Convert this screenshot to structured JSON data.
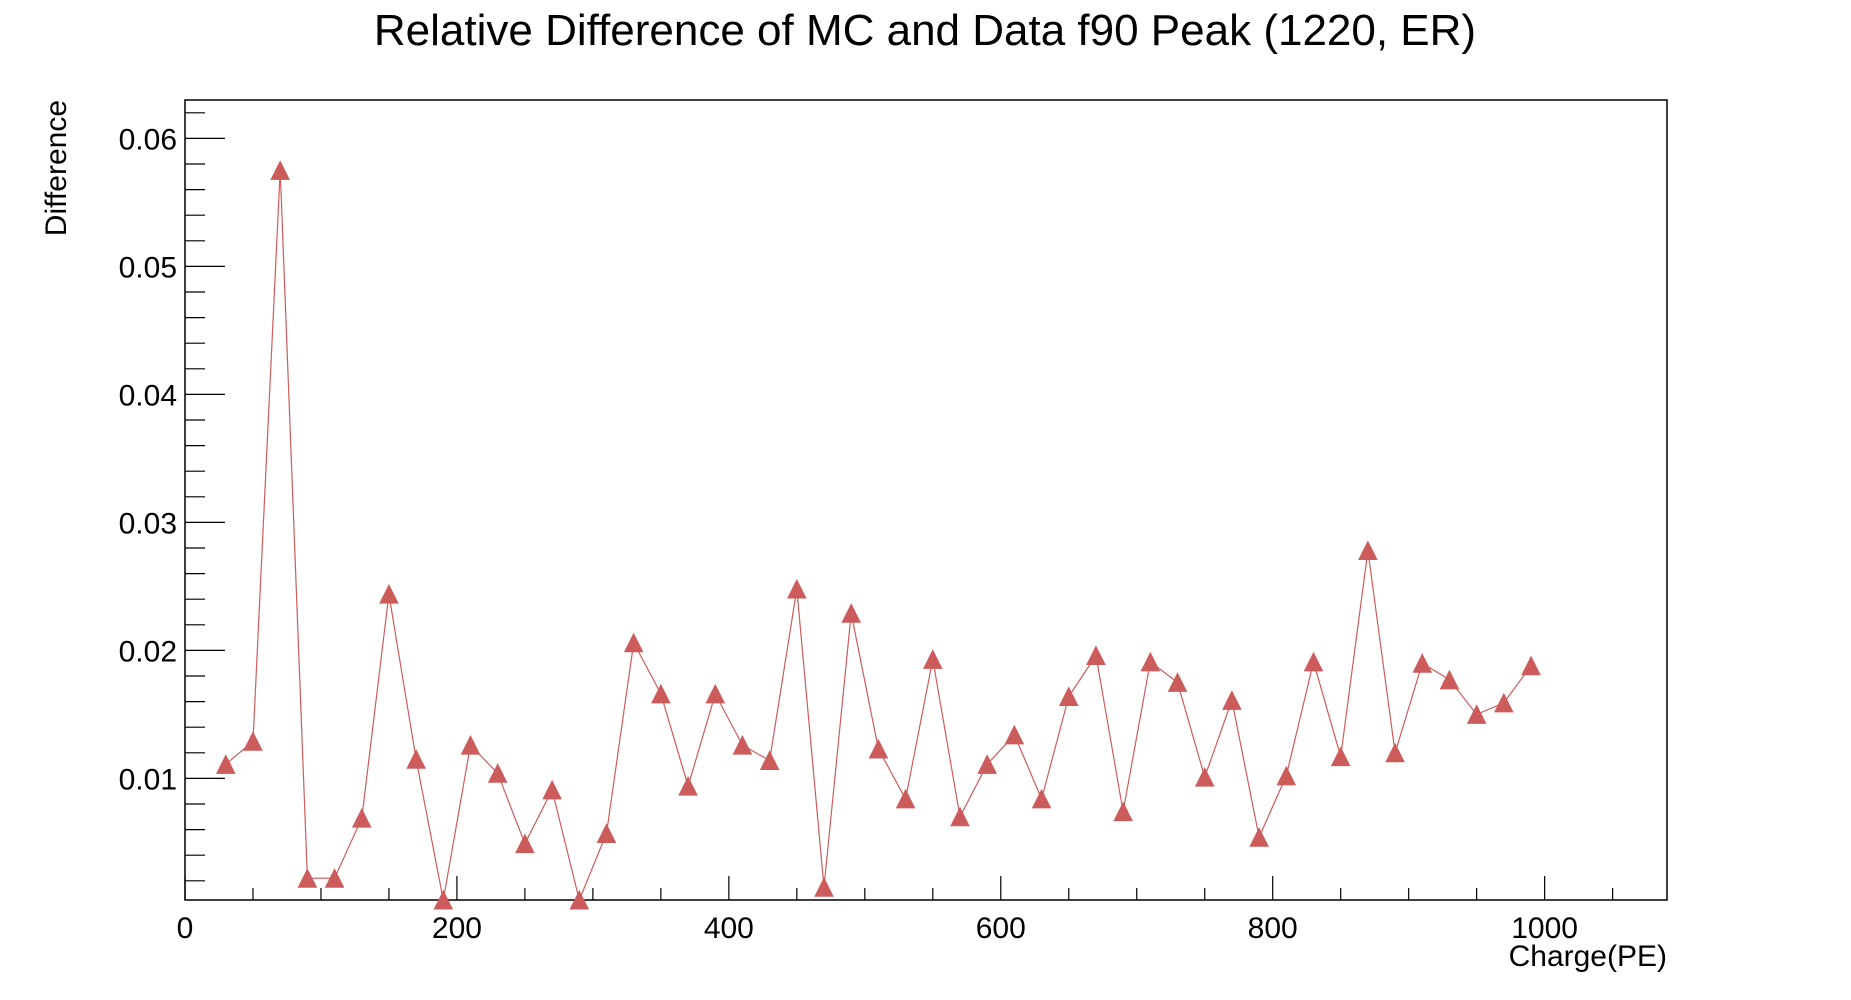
{
  "chart_data": {
    "type": "line",
    "title": "Relative Difference of MC and Data f90 Peak (1220, ER)",
    "xlabel": "Charge(PE)",
    "ylabel": "Difference",
    "xlim": [
      0,
      1090
    ],
    "ylim": [
      0.0005,
      0.063
    ],
    "x_ticks": [
      0,
      200,
      400,
      600,
      800,
      1000
    ],
    "x_tick_labels": [
      "0",
      "200",
      "400",
      "600",
      "800",
      "1000"
    ],
    "y_ticks": [
      0.01,
      0.02,
      0.03,
      0.04,
      0.05,
      0.06
    ],
    "y_tick_labels": [
      "0.01",
      "0.02",
      "0.03",
      "0.04",
      "0.05",
      "0.06"
    ],
    "grid": false,
    "legend": "none",
    "marker": "triangle-up",
    "series": [
      {
        "color": "#cc5c5c",
        "x": [
          30,
          50,
          70,
          90,
          110,
          130,
          150,
          170,
          190,
          210,
          230,
          250,
          270,
          290,
          310,
          330,
          350,
          370,
          390,
          410,
          430,
          450,
          470,
          490,
          510,
          530,
          550,
          570,
          590,
          610,
          630,
          650,
          670,
          690,
          710,
          730,
          750,
          770,
          790,
          810,
          830,
          850,
          870,
          890,
          910,
          930,
          950,
          970,
          990
        ],
        "y": [
          0.0111,
          0.0129,
          0.0575,
          0.0022,
          0.0022,
          0.0069,
          0.0244,
          0.0115,
          0.0005,
          0.0126,
          0.0104,
          0.0049,
          0.0091,
          0.0005,
          0.0057,
          0.0206,
          0.0166,
          0.0094,
          0.0166,
          0.0126,
          0.0114,
          0.0248,
          0.0015,
          0.0229,
          0.0123,
          0.0084,
          0.0193,
          0.007,
          0.0111,
          0.0134,
          0.0084,
          0.0164,
          0.0196,
          0.0074,
          0.0191,
          0.0175,
          0.0101,
          0.0161,
          0.0054,
          0.0102,
          0.0191,
          0.0117,
          0.0278,
          0.012,
          0.019,
          0.0177,
          0.015,
          0.0159,
          0.0188
        ]
      }
    ]
  }
}
